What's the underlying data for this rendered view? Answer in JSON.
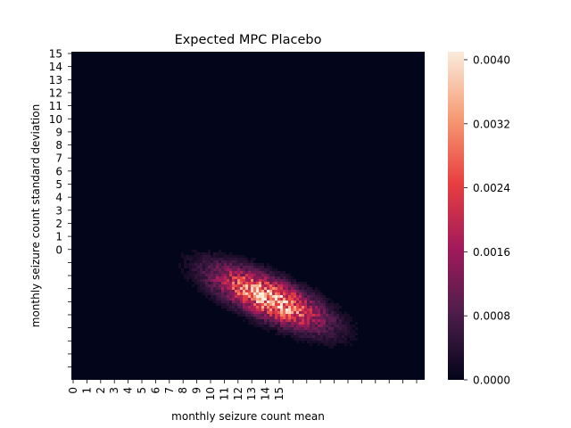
{
  "chart_data": {
    "type": "heatmap",
    "title": "Expected MPC Placebo",
    "xlabel": "monthly seizure count mean",
    "ylabel": "monthly seizure count standard deviation",
    "x_tick_labels": [
      "0",
      "1",
      "2",
      "3",
      "4",
      "5",
      "6",
      "7",
      "8",
      "9",
      "10",
      "11",
      "12",
      "13",
      "14",
      "15"
    ],
    "y_tick_labels": [
      "15",
      "14",
      "13",
      "12",
      "11",
      "10",
      "9",
      "8",
      "7",
      "6",
      "5",
      "4",
      "3",
      "2",
      "1",
      "0"
    ],
    "colorbar": {
      "min": 0.0,
      "max": 0.0041,
      "ticks": [
        0.0,
        0.0008,
        0.0016,
        0.0024,
        0.0032,
        0.004
      ],
      "tick_labels": [
        "0.0000",
        "0.0008",
        "0.0016",
        "0.0024",
        "0.0032",
        "0.0040"
      ],
      "colors": [
        "#03051a",
        "#4c1d4b",
        "#a11a5b",
        "#e83f3f",
        "#f69c73",
        "#faebdd"
      ]
    },
    "density_peak": {
      "x": 13.5,
      "y": -4.5,
      "value": 0.0041
    }
  }
}
